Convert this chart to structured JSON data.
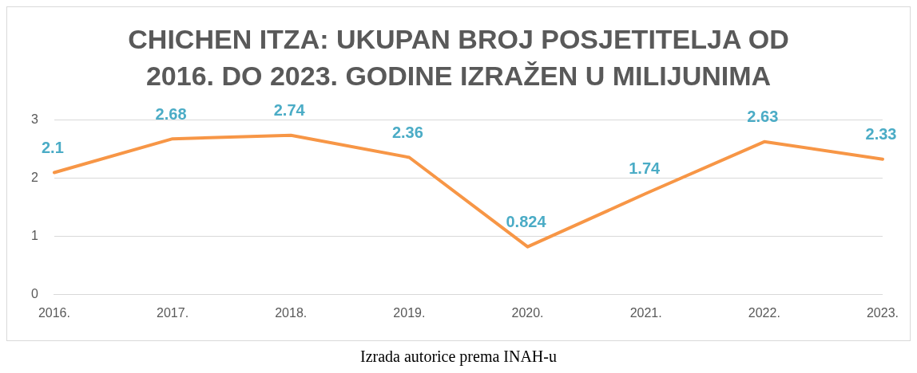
{
  "chart_data": {
    "type": "line",
    "title": "CHICHEN ITZA: UKUPAN BROJ POSJETITELJA OD 2016. DO 2023. GODINE IZRAŽEN U MILIJUNIMA",
    "categories": [
      "2016.",
      "2017.",
      "2018.",
      "2019.",
      "2020.",
      "2021.",
      "2022.",
      "2023."
    ],
    "series": [
      {
        "color": "#f79646",
        "values": [
          2.1,
          2.68,
          2.74,
          2.36,
          0.824,
          1.74,
          2.63,
          2.33
        ]
      }
    ],
    "ylim": [
      0,
      3
    ],
    "yticks": [
      0,
      1,
      2,
      3
    ],
    "grid": "y",
    "legend": false,
    "marker": "none",
    "line_style": "solid",
    "data_labels": true,
    "annotations": [
      "Izrada autorice prema INAH-u"
    ]
  }
}
